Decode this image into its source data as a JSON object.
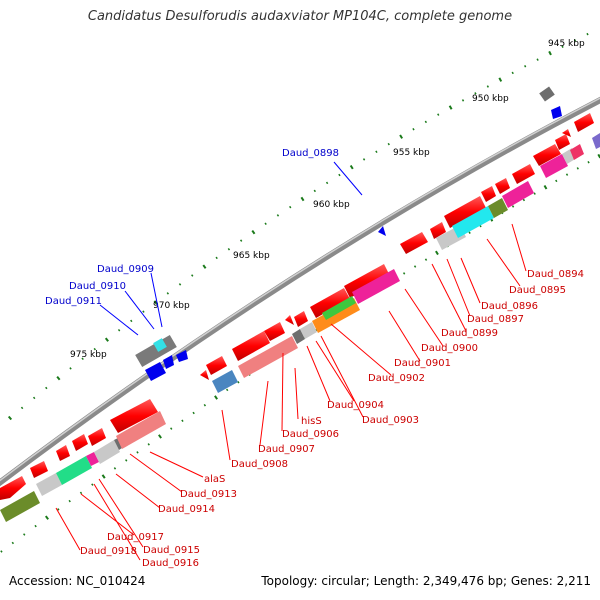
{
  "title": "Candidatus Desulforudis audaxviator MP104C, complete genome",
  "footer": {
    "accession": "Accession: NC_010424",
    "summary": "Topology: circular; Length: 2,349,476 bp; Genes: 2,211"
  },
  "ruler": [
    {
      "label": "945 kbp"
    },
    {
      "label": "950 kbp"
    },
    {
      "label": "955 kbp"
    },
    {
      "label": "960 kbp"
    },
    {
      "label": "965 kbp"
    },
    {
      "label": "970 kbp"
    },
    {
      "label": "975 kbp"
    }
  ],
  "genes_red": [
    "Daud_0894",
    "Daud_0895",
    "Daud_0896",
    "Daud_0897",
    "Daud_0899",
    "Daud_0900",
    "Daud_0901",
    "Daud_0902",
    "Daud_0903",
    "Daud_0904",
    "hisS",
    "Daud_0906",
    "Daud_0907",
    "Daud_0908",
    "alaS",
    "Daud_0913",
    "Daud_0914",
    "Daud_0915",
    "Daud_0916",
    "Daud_0917",
    "Daud_0918"
  ],
  "genes_blue": [
    "Daud_0898",
    "Daud_0909",
    "Daud_0910",
    "Daud_0911"
  ],
  "colors": {
    "backbone": "#8a8a8a",
    "gene": "#ff0000",
    "pseudo": "#f08080",
    "label_red": "#cc0000",
    "label_blue": "#0000cc",
    "tick": "#1a7a1a"
  }
}
